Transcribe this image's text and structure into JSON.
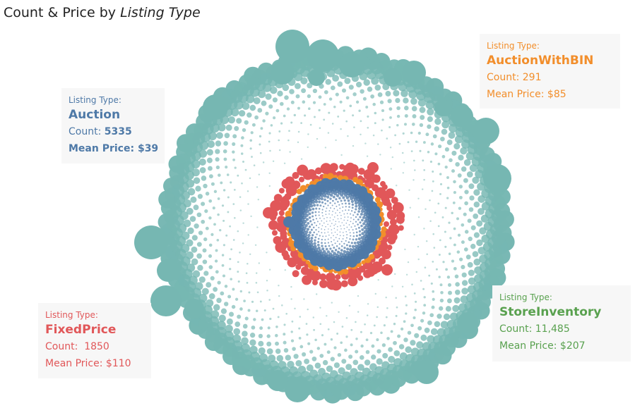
{
  "title": {
    "prefix": "Count & Price by ",
    "field": "Listing Type"
  },
  "colors": {
    "Auction": "#4e79a7",
    "AuctionWithBIN": "#f28e2b",
    "FixedPrice": "#e15759",
    "StoreInventory": "#76b7b2",
    "StoreInventory_text": "#59a14f"
  },
  "chart_data": {
    "type": "packed-bubble",
    "series": [
      {
        "name": "Auction",
        "count": 5335,
        "mean_price": 39
      },
      {
        "name": "AuctionWithBIN",
        "count": 291,
        "mean_price": 85
      },
      {
        "name": "FixedPrice",
        "count": 1850,
        "mean_price": 110
      },
      {
        "name": "StoreInventory",
        "count": 11485,
        "mean_price": 207
      }
    ]
  },
  "cards": {
    "auction": {
      "label": "Listing Type:",
      "name": "Auction",
      "count_label": "Count:",
      "count": "5335",
      "price_label": "Mean Price:",
      "price": "$39"
    },
    "bin": {
      "label": "Listing Type:",
      "name": "AuctionWithBIN",
      "count_label": "Count:",
      "count": "291",
      "price_label": "Mean Price:",
      "price": "$85"
    },
    "fixed": {
      "label": "Listing Type:",
      "name": "FixedPrice",
      "count_label": "Count:",
      "count": "1850",
      "price_label": "Mean Price:",
      "price": "$110"
    },
    "store": {
      "label": "Listing Type:",
      "name": "StoreInventory",
      "count_label": "Count:",
      "count": "11,485",
      "price_label": "Mean Price:",
      "price": "$207"
    }
  }
}
